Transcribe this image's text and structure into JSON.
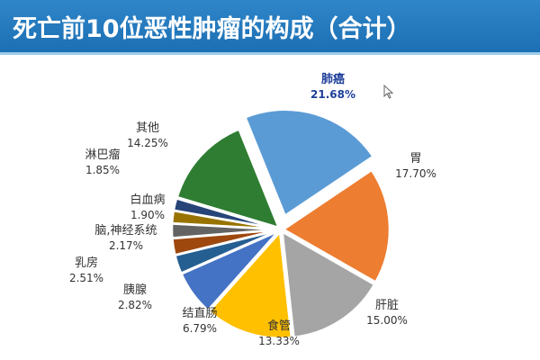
{
  "title": "死亡前10位恶性肿瘤的构成（合计）",
  "chart_data": {
    "type": "pie",
    "title": "死亡前10位恶性肿瘤的构成（合计）",
    "unit": "%",
    "slices": [
      {
        "label": "肺癌",
        "value": 21.68,
        "display": "21.68%",
        "color": "#5b9bd5",
        "exploded": true
      },
      {
        "label": "胃",
        "value": 17.7,
        "display": "17.70%",
        "color": "#ed7d31",
        "exploded": false
      },
      {
        "label": "肝脏",
        "value": 15.0,
        "display": "15.00%",
        "color": "#a5a5a5",
        "exploded": false
      },
      {
        "label": "食管",
        "value": 13.33,
        "display": "13.33%",
        "color": "#ffc000",
        "exploded": false
      },
      {
        "label": "结直肠",
        "value": 6.79,
        "display": "6.79%",
        "color": "#4472c4",
        "exploded": false
      },
      {
        "label": "胰腺",
        "value": 2.82,
        "display": "2.82%",
        "color": "#255e91",
        "exploded": false
      },
      {
        "label": "乳房",
        "value": 2.51,
        "display": "2.51%",
        "color": "#9e480e",
        "exploded": false
      },
      {
        "label": "脑,神经系统",
        "value": 2.17,
        "display": "2.17%",
        "color": "#636363",
        "exploded": false
      },
      {
        "label": "白血病",
        "value": 1.9,
        "display": "1.90%",
        "color": "#997300",
        "exploded": false
      },
      {
        "label": "淋巴瘤",
        "value": 1.85,
        "display": "1.85%",
        "color": "#264478",
        "exploded": false
      },
      {
        "label": "其他",
        "value": 14.25,
        "display": "14.25%",
        "color": "#2e7d32",
        "exploded": false
      }
    ]
  },
  "colors": {
    "title_bg": "#1c6fb3",
    "title_text": "#ffffff",
    "highlight_label": "#1f3f9a",
    "label_text": "#333333"
  }
}
